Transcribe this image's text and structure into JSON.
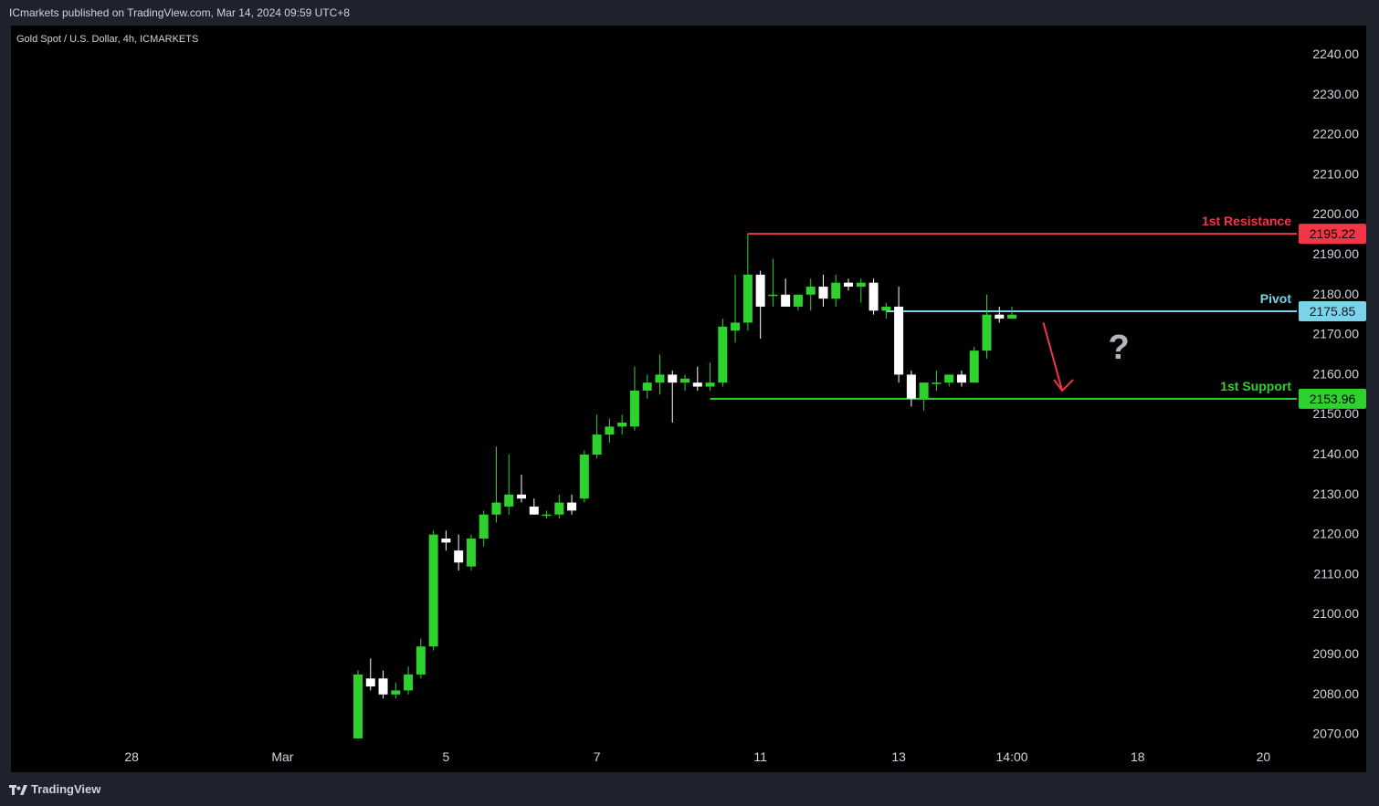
{
  "header": {
    "published_text": "ICmarkets published on TradingView.com, Mar 14, 2024 09:59 UTC+8"
  },
  "footer": {
    "brand": "TradingView"
  },
  "chart_data": {
    "type": "candlestick",
    "title": "Gold Spot / U.S. Dollar, 4h, ICMARKETS",
    "ylim": [
      2063,
      2245
    ],
    "y_ticks": [
      2240,
      2230,
      2220,
      2210,
      2200,
      2190,
      2180,
      2170,
      2160,
      2150,
      2140,
      2130,
      2120,
      2110,
      2100,
      2090,
      2080,
      2070
    ],
    "y_tick_labels": [
      "2240.00",
      "2230.00",
      "2220.00",
      "2210.00",
      "2200.00",
      "2190.00",
      "2180.00",
      "2170.00",
      "2160.00",
      "2150.00",
      "2140.00",
      "2130.00",
      "2120.00",
      "2110.00",
      "2100.00",
      "2090.00",
      "2080.00",
      "2070.00"
    ],
    "x_range": [
      0,
      86
    ],
    "x_ticks": [
      {
        "label": "28",
        "x": 3.0
      },
      {
        "label": "Mar",
        "x": 15.0
      },
      {
        "label": "5",
        "x": 28.0
      },
      {
        "label": "7",
        "x": 40.0
      },
      {
        "label": "11",
        "x": 53.0
      },
      {
        "label": "13",
        "x": 64.0
      },
      {
        "label": "14:00",
        "x": 73.0
      },
      {
        "label": "18",
        "x": 83.0
      },
      {
        "label": "20",
        "x": 93.0
      }
    ],
    "candles": [
      {
        "x": 21,
        "o": 2069,
        "h": 2086,
        "l": 2069,
        "c": 2085
      },
      {
        "x": 22,
        "o": 2084,
        "h": 2089,
        "l": 2081,
        "c": 2082
      },
      {
        "x": 23,
        "o": 2084,
        "h": 2086,
        "l": 2079,
        "c": 2080
      },
      {
        "x": 24,
        "o": 2080,
        "h": 2083,
        "l": 2079,
        "c": 2081
      },
      {
        "x": 25,
        "o": 2081,
        "h": 2087,
        "l": 2080,
        "c": 2085
      },
      {
        "x": 26,
        "o": 2085,
        "h": 2094,
        "l": 2084,
        "c": 2092
      },
      {
        "x": 27,
        "o": 2092,
        "h": 2121,
        "l": 2091,
        "c": 2120
      },
      {
        "x": 28,
        "o": 2119,
        "h": 2121,
        "l": 2116,
        "c": 2118
      },
      {
        "x": 29,
        "o": 2116,
        "h": 2120,
        "l": 2111,
        "c": 2113
      },
      {
        "x": 30,
        "o": 2112,
        "h": 2120,
        "l": 2111,
        "c": 2119
      },
      {
        "x": 31,
        "o": 2119,
        "h": 2126,
        "l": 2117,
        "c": 2125
      },
      {
        "x": 32,
        "o": 2125,
        "h": 2142,
        "l": 2123,
        "c": 2128
      },
      {
        "x": 33,
        "o": 2127,
        "h": 2140,
        "l": 2125,
        "c": 2130
      },
      {
        "x": 34,
        "o": 2130,
        "h": 2135,
        "l": 2128,
        "c": 2129
      },
      {
        "x": 35,
        "o": 2127,
        "h": 2129,
        "l": 2125,
        "c": 2125
      },
      {
        "x": 36,
        "o": 2125,
        "h": 2126,
        "l": 2124,
        "c": 2125
      },
      {
        "x": 37,
        "o": 2125,
        "h": 2130,
        "l": 2124,
        "c": 2128
      },
      {
        "x": 38,
        "o": 2128,
        "h": 2130,
        "l": 2125,
        "c": 2126
      },
      {
        "x": 39,
        "o": 2129,
        "h": 2141,
        "l": 2128,
        "c": 2140
      },
      {
        "x": 40,
        "o": 2140,
        "h": 2150,
        "l": 2139,
        "c": 2145
      },
      {
        "x": 41,
        "o": 2145,
        "h": 2149,
        "l": 2143,
        "c": 2147
      },
      {
        "x": 42,
        "o": 2147,
        "h": 2150,
        "l": 2145,
        "c": 2148
      },
      {
        "x": 43,
        "o": 2147,
        "h": 2162,
        "l": 2146,
        "c": 2156
      },
      {
        "x": 44,
        "o": 2156,
        "h": 2160,
        "l": 2154,
        "c": 2158
      },
      {
        "x": 45,
        "o": 2158,
        "h": 2165,
        "l": 2155,
        "c": 2160
      },
      {
        "x": 46,
        "o": 2160,
        "h": 2161,
        "l": 2148,
        "c": 2158
      },
      {
        "x": 47,
        "o": 2158,
        "h": 2160,
        "l": 2156,
        "c": 2159
      },
      {
        "x": 48,
        "o": 2158,
        "h": 2162,
        "l": 2156,
        "c": 2157
      },
      {
        "x": 49,
        "o": 2157,
        "h": 2163,
        "l": 2156,
        "c": 2158
      },
      {
        "x": 50,
        "o": 2158,
        "h": 2174,
        "l": 2157,
        "c": 2172
      },
      {
        "x": 51,
        "o": 2171,
        "h": 2185,
        "l": 2168,
        "c": 2173
      },
      {
        "x": 52,
        "o": 2173,
        "h": 2195.22,
        "l": 2171,
        "c": 2185
      },
      {
        "x": 53,
        "o": 2185,
        "h": 2186,
        "l": 2169,
        "c": 2177
      },
      {
        "x": 54,
        "o": 2180,
        "h": 2189,
        "l": 2177,
        "c": 2180
      },
      {
        "x": 55,
        "o": 2180,
        "h": 2184,
        "l": 2177,
        "c": 2177
      },
      {
        "x": 56,
        "o": 2177,
        "h": 2180,
        "l": 2176,
        "c": 2180
      },
      {
        "x": 57,
        "o": 2180,
        "h": 2184,
        "l": 2176,
        "c": 2182
      },
      {
        "x": 58,
        "o": 2182,
        "h": 2185,
        "l": 2177,
        "c": 2179
      },
      {
        "x": 59,
        "o": 2179,
        "h": 2185,
        "l": 2177,
        "c": 2183
      },
      {
        "x": 60,
        "o": 2183,
        "h": 2184,
        "l": 2181,
        "c": 2182
      },
      {
        "x": 61,
        "o": 2182,
        "h": 2184,
        "l": 2178,
        "c": 2183
      },
      {
        "x": 62,
        "o": 2183,
        "h": 2184,
        "l": 2175,
        "c": 2176
      },
      {
        "x": 63,
        "o": 2176,
        "h": 2178,
        "l": 2174,
        "c": 2177
      },
      {
        "x": 64,
        "o": 2177,
        "h": 2182,
        "l": 2158,
        "c": 2160
      },
      {
        "x": 65,
        "o": 2160,
        "h": 2161,
        "l": 2152,
        "c": 2154
      },
      {
        "x": 66,
        "o": 2154,
        "h": 2158,
        "l": 2151,
        "c": 2158
      },
      {
        "x": 67,
        "o": 2158,
        "h": 2161,
        "l": 2156,
        "c": 2158
      },
      {
        "x": 68,
        "o": 2158,
        "h": 2160,
        "l": 2157,
        "c": 2160
      },
      {
        "x": 69,
        "o": 2160,
        "h": 2161,
        "l": 2157,
        "c": 2158
      },
      {
        "x": 70,
        "o": 2158,
        "h": 2167,
        "l": 2158,
        "c": 2166
      },
      {
        "x": 71,
        "o": 2166,
        "h": 2180,
        "l": 2164,
        "c": 2175
      },
      {
        "x": 72,
        "o": 2175,
        "h": 2177,
        "l": 2173,
        "c": 2174
      },
      {
        "x": 73,
        "o": 2174,
        "h": 2177,
        "l": 2174,
        "c": 2175
      }
    ],
    "levels": [
      {
        "name": "1st Resistance",
        "value": 2195.22,
        "label": "2195.22",
        "color": "#f23645",
        "x_start": 52
      },
      {
        "name": "Pivot",
        "value": 2175.85,
        "label": "2175.85",
        "color": "#7ad3e8",
        "x_start": 63
      },
      {
        "name": "1st Support",
        "value": 2153.96,
        "label": "2153.96",
        "color": "#2fd12f",
        "x_start": 49
      }
    ],
    "annotations": [
      {
        "type": "arrow",
        "color": "#f23645",
        "from": {
          "x": 75.5,
          "y": 2173
        },
        "to": {
          "x": 77.0,
          "y": 2156
        }
      },
      {
        "type": "text",
        "text": "?",
        "color": "#b2b5be",
        "x": 81.5,
        "y": 2164
      }
    ],
    "colors": {
      "up": "#2fd12f",
      "down": "#ffffff",
      "background": "#000000",
      "text": "#d1d4dc"
    }
  }
}
